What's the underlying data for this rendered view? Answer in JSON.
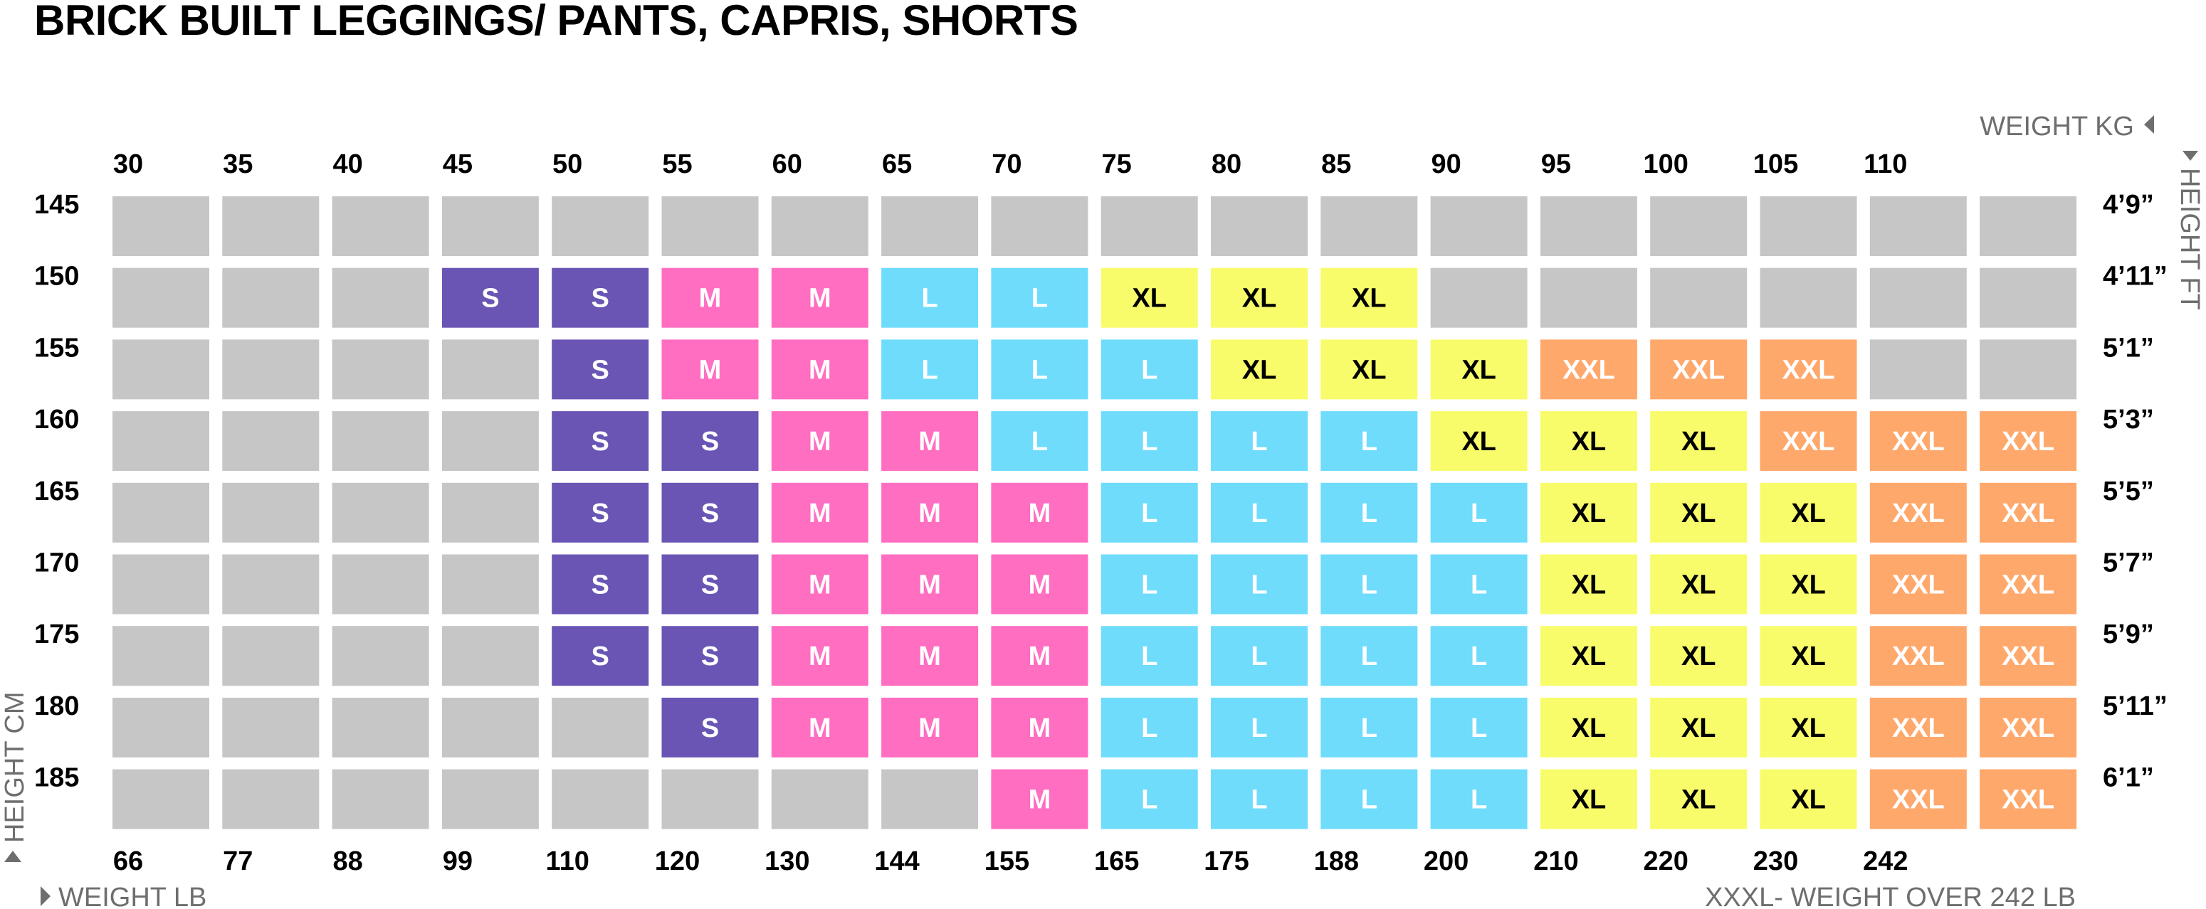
{
  "title": "BRICK BUILT LEGGINGS/ PANTS, CAPRIS, SHORTS",
  "footnote": "XXXL- WEIGHT OVER 242 LB",
  "chart_data": {
    "type": "heatmap",
    "x_axis_top": {
      "label": "WEIGHT KG",
      "ticks": [
        "30",
        "35",
        "40",
        "45",
        "50",
        "55",
        "60",
        "65",
        "70",
        "75",
        "80",
        "85",
        "90",
        "95",
        "100",
        "105",
        "110"
      ]
    },
    "x_axis_bottom": {
      "label": "WEIGHT LB",
      "ticks": [
        "66",
        "77",
        "88",
        "99",
        "110",
        "120",
        "130",
        "144",
        "155",
        "165",
        "175",
        "188",
        "200",
        "210",
        "220",
        "230",
        "242"
      ]
    },
    "y_axis_left": {
      "label": "HEIGHT CM",
      "ticks": [
        "145",
        "150",
        "155",
        "160",
        "165",
        "170",
        "175",
        "180",
        "185"
      ]
    },
    "y_axis_right": {
      "label": "HEIGHT FT",
      "ticks": [
        "4’9”",
        "4’11”",
        "5’1”",
        "5’3”",
        "5’5”",
        "5’7”",
        "5’9”",
        "5’11”",
        "6’1”"
      ]
    },
    "columns": 18,
    "colors": {
      "empty": "#c6c6c6",
      "S": "#6a55b5",
      "M": "#ff6ec0",
      "L": "#6fdcfc",
      "XL": "#f8fc6a",
      "XXL": "#ffa86c"
    },
    "label_colors": {
      "S": "#ffffff",
      "M": "#ffffff",
      "L": "#ffffff",
      "XL": "#000000",
      "XXL": "#ffffff"
    },
    "grid": [
      [
        "",
        "",
        "",
        "",
        "",
        "",
        "",
        "",
        "",
        "",
        "",
        "",
        "",
        "",
        "",
        "",
        "",
        ""
      ],
      [
        "",
        "",
        "",
        "S",
        "S",
        "M",
        "M",
        "L",
        "L",
        "XL",
        "XL",
        "XL",
        "",
        "",
        "",
        "",
        "",
        ""
      ],
      [
        "",
        "",
        "",
        "",
        "S",
        "M",
        "M",
        "L",
        "L",
        "L",
        "XL",
        "XL",
        "XL",
        "XXL",
        "XXL",
        "XXL",
        "",
        ""
      ],
      [
        "",
        "",
        "",
        "",
        "S",
        "S",
        "M",
        "M",
        "L",
        "L",
        "L",
        "L",
        "XL",
        "XL",
        "XL",
        "XXL",
        "XXL",
        "XXL"
      ],
      [
        "",
        "",
        "",
        "",
        "S",
        "S",
        "M",
        "M",
        "M",
        "L",
        "L",
        "L",
        "L",
        "XL",
        "XL",
        "XL",
        "XXL",
        "XXL"
      ],
      [
        "",
        "",
        "",
        "",
        "S",
        "S",
        "M",
        "M",
        "M",
        "L",
        "L",
        "L",
        "L",
        "XL",
        "XL",
        "XL",
        "XXL",
        "XXL"
      ],
      [
        "",
        "",
        "",
        "",
        "S",
        "S",
        "M",
        "M",
        "M",
        "L",
        "L",
        "L",
        "L",
        "XL",
        "XL",
        "XL",
        "XXL",
        "XXL"
      ],
      [
        "",
        "",
        "",
        "",
        "",
        "S",
        "M",
        "M",
        "M",
        "L",
        "L",
        "L",
        "L",
        "XL",
        "XL",
        "XL",
        "XXL",
        "XXL"
      ],
      [
        "",
        "",
        "",
        "",
        "",
        "",
        "",
        "",
        "M",
        "L",
        "L",
        "L",
        "L",
        "XL",
        "XL",
        "XL",
        "XXL",
        "XXL"
      ]
    ]
  }
}
